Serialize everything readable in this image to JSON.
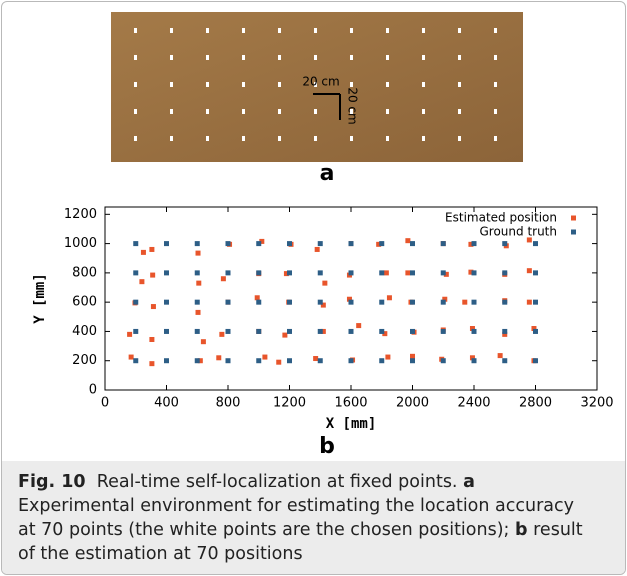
{
  "figure": {
    "photo": {
      "annotation_horizontal": "20 cm",
      "annotation_vertical": "20 cm"
    },
    "panel_a": "a",
    "panel_b": "b",
    "caption": {
      "label": "Fig. 10",
      "title": "Real-time self-localization at fixed points.",
      "parts": [
        {
          "label": "a",
          "text": "Experimental environment for estimating the location accuracy at 70 points (the white points are the chosen positions);"
        },
        {
          "label": "b",
          "text": "result of the estimation at 70 positions"
        }
      ]
    }
  },
  "chart_data": {
    "type": "scatter",
    "x_label": "X  [mm]",
    "y_label": "Y  [mm]",
    "xlim": [
      0,
      3200
    ],
    "ylim": [
      0,
      1250
    ],
    "xticks": [
      0,
      400,
      800,
      1200,
      1600,
      2000,
      2400,
      2800,
      3200
    ],
    "yticks": [
      0,
      200,
      400,
      600,
      800,
      1000,
      1200
    ],
    "legend": "top-right",
    "series": [
      {
        "name": "Estimated position",
        "color": "#e8552b",
        "x": [
          170,
          160,
          195,
          240,
          250,
          305,
          305,
          315,
          310,
          305,
          620,
          640,
          605,
          610,
          605,
          740,
          760,
          800,
          770,
          810,
          1040,
          1000,
          990,
          1000,
          1020,
          1130,
          1170,
          1195,
          1180,
          1210,
          1370,
          1420,
          1420,
          1430,
          1380,
          1610,
          1650,
          1590,
          1590,
          1600,
          1840,
          1820,
          1850,
          1830,
          1780,
          2000,
          2010,
          1990,
          1970,
          1970,
          2190,
          2200,
          2210,
          2220,
          2200,
          2390,
          2390,
          2340,
          2380,
          2380,
          2570,
          2600,
          2600,
          2600,
          2610,
          2790,
          2790,
          2760,
          2760,
          2760
        ],
        "values": [
          225,
          380,
          595,
          740,
          940,
          180,
          345,
          570,
          785,
          960,
          200,
          330,
          530,
          730,
          935,
          220,
          380,
          600,
          760,
          995,
          225,
          400,
          630,
          795,
          1015,
          190,
          375,
          600,
          795,
          995,
          215,
          400,
          580,
          730,
          960,
          205,
          440,
          620,
          785,
          1000,
          225,
          385,
          630,
          800,
          995,
          230,
          395,
          600,
          800,
          1020,
          210,
          410,
          620,
          790,
          1000,
          220,
          420,
          600,
          805,
          995,
          235,
          380,
          610,
          790,
          985,
          200,
          420,
          600,
          815,
          1025
        ]
      },
      {
        "name": "Ground truth",
        "color": "#2d5e86",
        "x": [
          200,
          200,
          200,
          200,
          200,
          400,
          400,
          400,
          400,
          400,
          600,
          600,
          600,
          600,
          600,
          800,
          800,
          800,
          800,
          800,
          1000,
          1000,
          1000,
          1000,
          1000,
          1200,
          1200,
          1200,
          1200,
          1200,
          1400,
          1400,
          1400,
          1400,
          1400,
          1600,
          1600,
          1600,
          1600,
          1600,
          1800,
          1800,
          1800,
          1800,
          1800,
          2000,
          2000,
          2000,
          2000,
          2000,
          2200,
          2200,
          2200,
          2200,
          2200,
          2400,
          2400,
          2400,
          2400,
          2400,
          2600,
          2600,
          2600,
          2600,
          2600,
          2800,
          2800,
          2800,
          2800,
          2800
        ],
        "values": [
          200,
          400,
          600,
          800,
          1000,
          200,
          400,
          600,
          800,
          1000,
          200,
          400,
          600,
          800,
          1000,
          200,
          400,
          600,
          800,
          1000,
          200,
          400,
          600,
          800,
          1000,
          200,
          400,
          600,
          800,
          1000,
          200,
          400,
          600,
          800,
          1000,
          200,
          400,
          600,
          800,
          1000,
          200,
          400,
          600,
          800,
          1000,
          200,
          400,
          600,
          800,
          1000,
          200,
          400,
          600,
          800,
          1000,
          200,
          400,
          600,
          800,
          1000,
          200,
          400,
          600,
          800,
          1000,
          200,
          400,
          600,
          800,
          1000
        ]
      }
    ]
  }
}
